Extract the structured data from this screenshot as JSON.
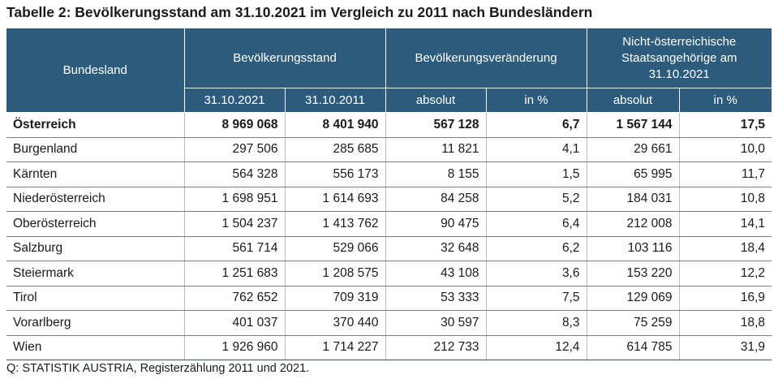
{
  "title": "Tabelle 2: Bevölkerungsstand am 31.10.2021 im Vergleich zu 2011 nach Bundesländern",
  "header": {
    "bundesland": "Bundesland",
    "bevoelkerungsstand": "Bevölkerungsstand",
    "veraenderung": "Bevölkerungsveränderung",
    "nicht_oesterreichisch": "Nicht-österreichische Staatsangehörige am 31.10.2021",
    "sub": [
      "31.10.2021",
      "31.10.2011",
      "absolut",
      "in %",
      "absolut",
      "in %"
    ]
  },
  "rows": [
    {
      "name": "Österreich",
      "c1": "8 969 068",
      "c2": "8 401 940",
      "c3": "567 128",
      "c4": "6,7",
      "c5": "1 567 144",
      "c6": "17,5"
    },
    {
      "name": "Burgenland",
      "c1": "297 506",
      "c2": "285 685",
      "c3": "11 821",
      "c4": "4,1",
      "c5": "29 661",
      "c6": "10,0"
    },
    {
      "name": "Kärnten",
      "c1": "564 328",
      "c2": "556 173",
      "c3": "8 155",
      "c4": "1,5",
      "c5": "65 995",
      "c6": "11,7"
    },
    {
      "name": "Niederösterreich",
      "c1": "1 698 951",
      "c2": "1 614 693",
      "c3": "84 258",
      "c4": "5,2",
      "c5": "184 031",
      "c6": "10,8"
    },
    {
      "name": "Oberösterreich",
      "c1": "1 504 237",
      "c2": "1 413 762",
      "c3": "90 475",
      "c4": "6,4",
      "c5": "212 008",
      "c6": "14,1"
    },
    {
      "name": "Salzburg",
      "c1": "561 714",
      "c2": "529 066",
      "c3": "32 648",
      "c4": "6,2",
      "c5": "103 116",
      "c6": "18,4"
    },
    {
      "name": "Steiermark",
      "c1": "1 251 683",
      "c2": "1 208 575",
      "c3": "43 108",
      "c4": "3,6",
      "c5": "153 220",
      "c6": "12,2"
    },
    {
      "name": "Tirol",
      "c1": "762 652",
      "c2": "709 319",
      "c3": "53 333",
      "c4": "7,5",
      "c5": "129 069",
      "c6": "16,9"
    },
    {
      "name": "Vorarlberg",
      "c1": "401 037",
      "c2": "370 440",
      "c3": "30 597",
      "c4": "8,3",
      "c5": "75 259",
      "c6": "18,8"
    },
    {
      "name": "Wien",
      "c1": "1 926 960",
      "c2": "1 714 227",
      "c3": "212 733",
      "c4": "12,4",
      "c5": "614 785",
      "c6": "31,9"
    }
  ],
  "source": "Q: STATISTIK AUSTRIA, Registerzählung 2011 und 2021."
}
